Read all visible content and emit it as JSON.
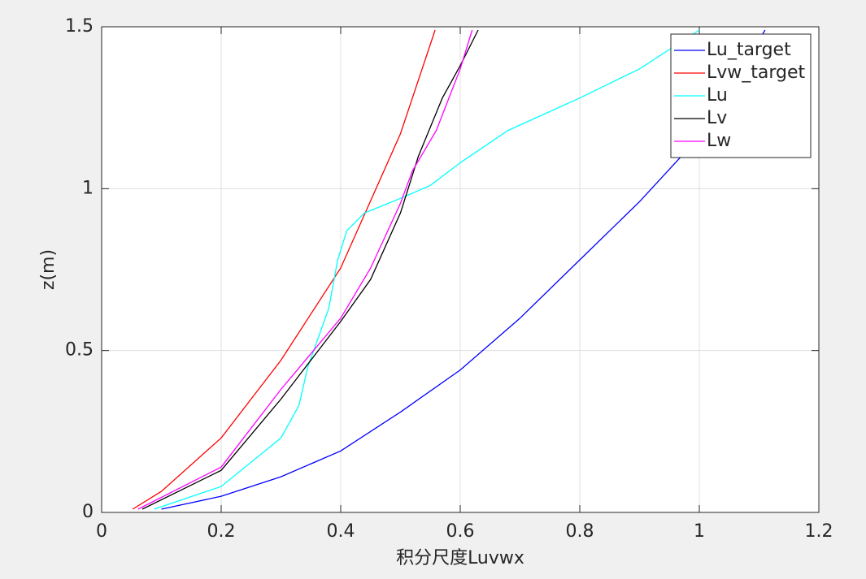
{
  "chart_data": {
    "type": "line",
    "xlabel": "积分尺度Luvwx",
    "ylabel": "z(m)",
    "xlim": [
      0,
      1.2
    ],
    "ylim": [
      0,
      1.5
    ],
    "xticks": [
      0,
      0.2,
      0.4,
      0.6,
      0.8,
      1,
      1.2
    ],
    "yticks": [
      0,
      0.5,
      1,
      1.5
    ],
    "grid": true,
    "legend": "top-right",
    "series": [
      {
        "name": "Lu_target",
        "color": "#0000ff",
        "x": [
          0.1,
          0.2,
          0.3,
          0.4,
          0.5,
          0.6,
          0.7,
          0.8,
          0.9,
          1.0,
          1.11
        ],
        "values": [
          0.01,
          0.05,
          0.11,
          0.19,
          0.31,
          0.44,
          0.6,
          0.78,
          0.96,
          1.16,
          1.49
        ]
      },
      {
        "name": "Lvw_target",
        "color": "#ff0000",
        "x": [
          0.052,
          0.1,
          0.2,
          0.3,
          0.4,
          0.5,
          0.558
        ],
        "values": [
          0.01,
          0.065,
          0.23,
          0.47,
          0.755,
          1.17,
          1.49
        ]
      },
      {
        "name": "Lu",
        "color": "#00ffff",
        "x": [
          0.088,
          0.2,
          0.3,
          0.33,
          0.345,
          0.38,
          0.395,
          0.41,
          0.44,
          0.5,
          0.55,
          0.6,
          0.68,
          0.8,
          0.9,
          1.0
        ],
        "values": [
          0.01,
          0.08,
          0.23,
          0.33,
          0.45,
          0.63,
          0.78,
          0.87,
          0.925,
          0.97,
          1.01,
          1.08,
          1.18,
          1.28,
          1.37,
          1.49
        ]
      },
      {
        "name": "Lv",
        "color": "#000000",
        "x": [
          0.068,
          0.2,
          0.3,
          0.4,
          0.45,
          0.5,
          0.53,
          0.57,
          0.6,
          0.63
        ],
        "values": [
          0.01,
          0.13,
          0.35,
          0.59,
          0.72,
          0.925,
          1.1,
          1.28,
          1.38,
          1.49
        ]
      },
      {
        "name": "Lw",
        "color": "#ff00ff",
        "x": [
          0.061,
          0.2,
          0.3,
          0.4,
          0.45,
          0.5,
          0.52,
          0.56,
          0.6,
          0.62
        ],
        "values": [
          0.01,
          0.14,
          0.38,
          0.6,
          0.755,
          0.955,
          1.055,
          1.18,
          1.37,
          1.49
        ]
      }
    ]
  }
}
